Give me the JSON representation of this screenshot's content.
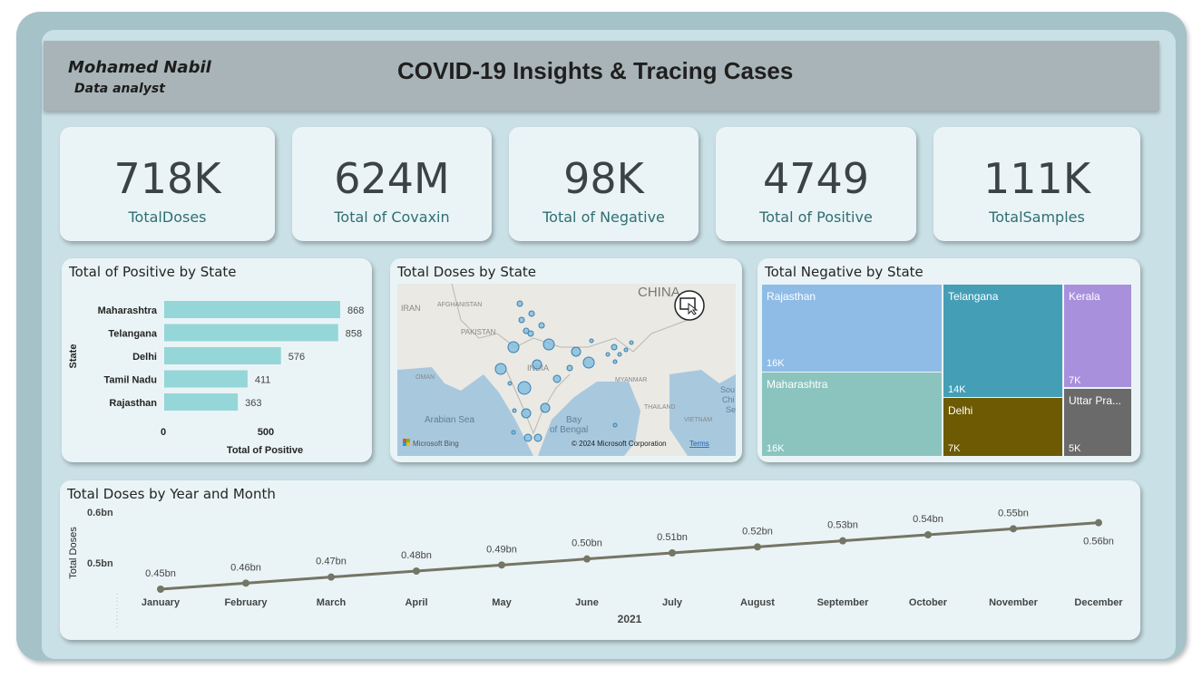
{
  "header": {
    "author_name": "Mohamed Nabil",
    "author_role": "Data analyst",
    "title": "COVID-19 Insights & Tracing Cases"
  },
  "kpis": [
    {
      "value": "718K",
      "label": "TotalDoses"
    },
    {
      "value": "624M",
      "label": "Total of Covaxin"
    },
    {
      "value": "98K",
      "label": "Total of Negative"
    },
    {
      "value": "4749",
      "label": "Total of Positive"
    },
    {
      "value": "111K",
      "label": "TotalSamples"
    }
  ],
  "positive_chart": {
    "title": "Total of Positive by State",
    "ylabel": "State",
    "xlabel": "Total of Positive",
    "ticks": [
      "0",
      "500"
    ]
  },
  "map": {
    "title": "Total Doses by State",
    "labels": [
      "CHINA",
      "AFGHANISTAN",
      "IRAN",
      "PAKISTAN",
      "INDIA",
      "OMAN",
      "MYANMAR",
      "THAILAND",
      "VIETNAM",
      "Arabian Sea",
      "Bay",
      "of Bengal",
      "Sou",
      "Chi",
      "Se"
    ],
    "bing": "Microsoft Bing",
    "copyright": "© 2024 Microsoft Corporation",
    "terms": "Terms"
  },
  "negative_chart": {
    "title": "Total Negative by State",
    "tiles": [
      {
        "name": "Rajasthan",
        "value": "16K",
        "color": "#8ebce7"
      },
      {
        "name": "Maharashtra",
        "value": "16K",
        "color": "#8bc4be"
      },
      {
        "name": "Telangana",
        "value": "14K",
        "color": "#449eb6"
      },
      {
        "name": "Delhi",
        "value": "7K",
        "color": "#6d5a02"
      },
      {
        "name": "Kerala",
        "value": "7K",
        "color": "#a990dd"
      },
      {
        "name": "Uttar Pra...",
        "value": "5K",
        "color": "#6a6a6a"
      }
    ]
  },
  "line_chart": {
    "title": "Total Doses by Year and Month",
    "ylabel": "Total Doses",
    "ytick_labels": [
      "0.6bn",
      "0.5bn"
    ],
    "year_label": "2021"
  },
  "chart_data": [
    {
      "type": "bar",
      "orientation": "horizontal",
      "title": "Total of Positive by State",
      "xlabel": "Total of Positive",
      "ylabel": "State",
      "categories": [
        "Maharashtra",
        "Telangana",
        "Delhi",
        "Tamil Nadu",
        "Rajasthan"
      ],
      "values": [
        868,
        858,
        576,
        411,
        363
      ],
      "xlim": [
        0,
        868
      ],
      "color": "#95d6d8"
    },
    {
      "type": "line",
      "title": "Total Doses by Year and Month",
      "xlabel": "2021",
      "ylabel": "Total Doses",
      "categories": [
        "January",
        "February",
        "March",
        "April",
        "May",
        "June",
        "July",
        "August",
        "September",
        "October",
        "November",
        "December"
      ],
      "values": [
        0.45,
        0.46,
        0.47,
        0.48,
        0.49,
        0.5,
        0.51,
        0.52,
        0.53,
        0.54,
        0.55,
        0.56
      ],
      "value_labels": [
        "0.45bn",
        "0.46bn",
        "0.47bn",
        "0.48bn",
        "0.49bn",
        "0.50bn",
        "0.51bn",
        "0.52bn",
        "0.53bn",
        "0.54bn",
        "0.55bn",
        "0.56bn"
      ],
      "ylim": [
        0.42,
        0.6
      ],
      "color": "#757565"
    }
  ]
}
